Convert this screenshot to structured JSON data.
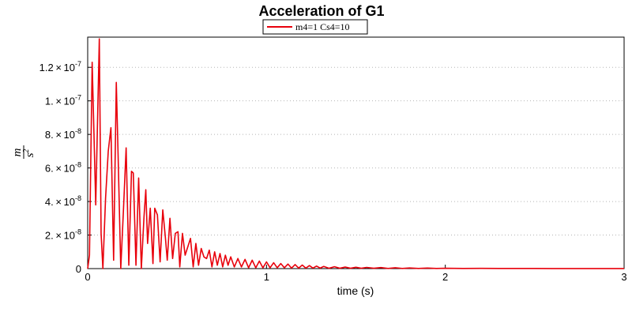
{
  "chart_data": {
    "type": "line",
    "title": "Acceleration of G1",
    "xlabel": "time (s)",
    "ylabel_num": "m",
    "ylabel_den": "s",
    "ylabel_den_exp": "2",
    "xlim": [
      0,
      3
    ],
    "ylim": [
      0,
      1.38e-07
    ],
    "x_ticks": [
      {
        "value": 0,
        "label": "0"
      },
      {
        "value": 1,
        "label": "1"
      },
      {
        "value": 2,
        "label": "2"
      },
      {
        "value": 3,
        "label": "3"
      }
    ],
    "y_ticks": [
      {
        "value": 0,
        "label": "0",
        "exp": ""
      },
      {
        "value": 2e-08,
        "label": "2. × 10",
        "exp": "-8"
      },
      {
        "value": 4e-08,
        "label": "4. × 10",
        "exp": "-8"
      },
      {
        "value": 6e-08,
        "label": "6. × 10",
        "exp": "-8"
      },
      {
        "value": 8e-08,
        "label": "8. × 10",
        "exp": "-8"
      },
      {
        "value": 1e-07,
        "label": "1. × 10",
        "exp": "-7"
      },
      {
        "value": 1.2e-07,
        "label": "1.2 × 10",
        "exp": "-7"
      }
    ],
    "grid": true,
    "legend_position": "top-center",
    "series": [
      {
        "name": "m4=1 Cs4=10",
        "color": "#e8000b",
        "x": [
          0,
          0.01,
          0.025,
          0.045,
          0.065,
          0.075,
          0.085,
          0.1,
          0.115,
          0.13,
          0.145,
          0.16,
          0.17,
          0.185,
          0.2,
          0.215,
          0.23,
          0.245,
          0.255,
          0.27,
          0.285,
          0.3,
          0.315,
          0.325,
          0.335,
          0.35,
          0.365,
          0.375,
          0.39,
          0.405,
          0.42,
          0.435,
          0.445,
          0.46,
          0.475,
          0.49,
          0.505,
          0.515,
          0.53,
          0.545,
          0.56,
          0.575,
          0.59,
          0.605,
          0.62,
          0.635,
          0.65,
          0.665,
          0.68,
          0.695,
          0.71,
          0.725,
          0.74,
          0.755,
          0.77,
          0.785,
          0.8,
          0.82,
          0.84,
          0.86,
          0.88,
          0.9,
          0.92,
          0.94,
          0.96,
          0.98,
          1.0,
          1.02,
          1.04,
          1.06,
          1.08,
          1.1,
          1.12,
          1.14,
          1.16,
          1.18,
          1.2,
          1.22,
          1.24,
          1.26,
          1.28,
          1.3,
          1.32,
          1.35,
          1.38,
          1.41,
          1.44,
          1.47,
          1.5,
          1.53,
          1.56,
          1.6,
          1.64,
          1.68,
          1.72,
          1.76,
          1.8,
          1.85,
          1.9,
          1.95,
          2.0,
          2.1,
          2.2,
          2.3,
          2.4,
          2.5,
          2.6,
          2.7,
          2.8,
          2.9,
          3.0
        ],
        "values": [
          0,
          8e-09,
          1.23e-07,
          3.8e-08,
          1.37e-07,
          2.1e-08,
          0,
          4.2e-08,
          7e-08,
          8.4e-08,
          5e-09,
          1.11e-07,
          6.8e-08,
          0,
          3.5e-08,
          7.2e-08,
          2e-09,
          5.8e-08,
          5.7e-08,
          2e-09,
          5.4e-08,
          0,
          3.1e-08,
          4.7e-08,
          1.5e-08,
          3.6e-08,
          3e-09,
          3.6e-08,
          3.2e-08,
          4e-09,
          3.5e-08,
          1.8e-08,
          5e-09,
          3e-08,
          6e-09,
          2.1e-08,
          2.2e-08,
          1e-09,
          2.1e-08,
          8e-09,
          1.3e-08,
          1.8e-08,
          1e-09,
          1.5e-08,
          2e-09,
          1.2e-08,
          7e-09,
          6e-09,
          1.1e-08,
          1e-09,
          1e-08,
          2e-09,
          9e-09,
          1e-09,
          8e-09,
          2e-09,
          7e-09,
          1e-09,
          6e-09,
          1e-09,
          5.5e-09,
          5e-10,
          5e-09,
          5e-10,
          4.5e-09,
          5e-10,
          4e-09,
          5e-10,
          3.5e-09,
          5e-10,
          3e-09,
          5e-10,
          2.7e-09,
          3e-10,
          2.4e-09,
          3e-10,
          2.1e-09,
          3e-10,
          1.8e-09,
          3e-10,
          1.5e-09,
          3e-10,
          1.3e-09,
          2e-10,
          1.1e-09,
          2e-10,
          9e-10,
          2e-10,
          8e-10,
          2e-10,
          7e-10,
          2e-10,
          6e-10,
          1e-10,
          5e-10,
          1e-10,
          4e-10,
          1e-10,
          3e-10,
          1e-10,
          2e-10,
          1e-10,
          1.5e-10,
          1e-10,
          1e-10,
          8e-11,
          5e-11,
          4e-11,
          3e-11,
          2e-11,
          1e-11
        ]
      }
    ]
  }
}
